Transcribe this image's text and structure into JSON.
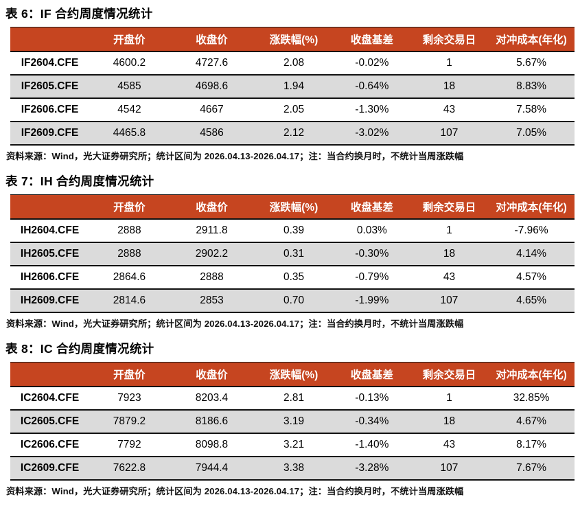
{
  "colors": {
    "header_bg": "#C64520",
    "header_text": "#FFFFFF",
    "stripe_row": "#DBDBDB",
    "border": "#111111"
  },
  "tables": [
    {
      "title": "表 6：IF 合约周度情况统计",
      "columns": [
        "",
        "开盘价",
        "收盘价",
        "涨跌幅(%)",
        "收盘基差",
        "剩余交易日",
        "对冲成本(年化)"
      ],
      "rows": [
        [
          "IF2604.CFE",
          "4600.2",
          "4727.6",
          "2.08",
          "-0.02%",
          "1",
          "5.67%"
        ],
        [
          "IF2605.CFE",
          "4585",
          "4698.6",
          "1.94",
          "-0.64%",
          "18",
          "8.83%"
        ],
        [
          "IF2606.CFE",
          "4542",
          "4667",
          "2.05",
          "-1.30%",
          "43",
          "7.58%"
        ],
        [
          "IF2609.CFE",
          "4465.8",
          "4586",
          "2.12",
          "-3.02%",
          "107",
          "7.05%"
        ]
      ],
      "footnote": "资料来源：Wind，光大证券研究所；统计区间为 2026.04.13-2026.04.17；注：当合约换月时，不统计当周涨跌幅"
    },
    {
      "title": "表 7：IH 合约周度情况统计",
      "columns": [
        "",
        "开盘价",
        "收盘价",
        "涨跌幅(%)",
        "收盘基差",
        "剩余交易日",
        "对冲成本(年化)"
      ],
      "rows": [
        [
          "IH2604.CFE",
          "2888",
          "2911.8",
          "0.39",
          "0.03%",
          "1",
          "-7.96%"
        ],
        [
          "IH2605.CFE",
          "2888",
          "2902.2",
          "0.31",
          "-0.30%",
          "18",
          "4.14%"
        ],
        [
          "IH2606.CFE",
          "2864.6",
          "2888",
          "0.35",
          "-0.79%",
          "43",
          "4.57%"
        ],
        [
          "IH2609.CFE",
          "2814.6",
          "2853",
          "0.70",
          "-1.99%",
          "107",
          "4.65%"
        ]
      ],
      "footnote": "资料来源：Wind，光大证券研究所；统计区间为 2026.04.13-2026.04.17；注：当合约换月时，不统计当周涨跌幅"
    },
    {
      "title": "表 8：IC 合约周度情况统计",
      "columns": [
        "",
        "开盘价",
        "收盘价",
        "涨跌幅(%)",
        "收盘基差",
        "剩余交易日",
        "对冲成本(年化)"
      ],
      "rows": [
        [
          "IC2604.CFE",
          "7923",
          "8203.4",
          "2.81",
          "-0.13%",
          "1",
          "32.85%"
        ],
        [
          "IC2605.CFE",
          "7879.2",
          "8186.6",
          "3.19",
          "-0.34%",
          "18",
          "4.67%"
        ],
        [
          "IC2606.CFE",
          "7792",
          "8098.8",
          "3.21",
          "-1.40%",
          "43",
          "8.17%"
        ],
        [
          "IC2609.CFE",
          "7622.8",
          "7944.4",
          "3.38",
          "-3.28%",
          "107",
          "7.67%"
        ]
      ],
      "footnote": "资料来源：Wind，光大证券研究所；统计区间为 2026.04.13-2026.04.17；注：当合约换月时，不统计当周涨跌幅"
    }
  ]
}
